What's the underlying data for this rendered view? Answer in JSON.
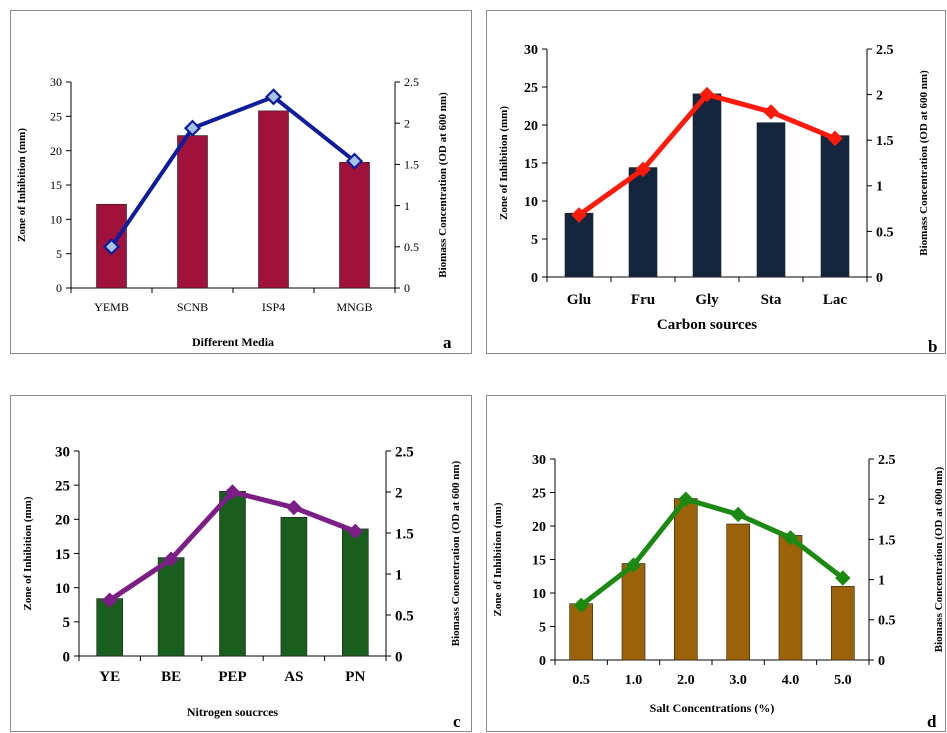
{
  "figure": {
    "panels": [
      {
        "id": "a",
        "letter": "a",
        "xlabel": "Different Media"
      },
      {
        "id": "b",
        "letter": "b",
        "xlabel": "Carbon sources"
      },
      {
        "id": "c",
        "letter": "c",
        "xlabel": "Nitrogen soucrces"
      },
      {
        "id": "d",
        "letter": "d",
        "xlabel": "Salt Concentrations (%)"
      }
    ]
  },
  "chart_data": [
    {
      "type": "bar",
      "panel": "a",
      "categories": [
        "YEMB",
        "SCNB",
        "ISP4",
        "MNGB"
      ],
      "xlabel": "Different Media",
      "ylabel": "Zone of Inhibition (mm)",
      "y2label": "Biomass Concentration (OD at 600 nm)",
      "ylim": [
        0,
        30
      ],
      "y2lim": [
        0,
        2.5
      ],
      "yticks": [
        "0",
        "5",
        "10",
        "15",
        "20",
        "25",
        "30"
      ],
      "y2ticks": [
        "0",
        "0.5",
        "1",
        "1.5",
        "2",
        "2.5"
      ],
      "bar_values": [
        12.2,
        22.2,
        25.8,
        18.3
      ],
      "line_values": [
        0.5,
        1.94,
        2.32,
        1.54
      ],
      "bar_color": "#a0123c",
      "line_color": "#0b1c9c",
      "marker": "diamond-hollow",
      "marker_fill": "#a7c4e8",
      "legend": "none"
    },
    {
      "type": "bar",
      "panel": "b",
      "categories": [
        "Glu",
        "Fru",
        "Gly",
        "Sta",
        "Lac"
      ],
      "xlabel": "Carbon sources",
      "ylabel": "Zone of Inhibition (mm)",
      "y2label": "Biomass Concentration (OD at 600 nm)",
      "ylim": [
        0,
        30
      ],
      "y2lim": [
        0,
        2.5
      ],
      "yticks": [
        "0",
        "5",
        "10",
        "15",
        "20",
        "25",
        "30"
      ],
      "y2ticks": [
        "0",
        "0.5",
        "1",
        "1.5",
        "2",
        "2.5"
      ],
      "bar_values": [
        8.4,
        14.4,
        24.1,
        20.3,
        18.6
      ],
      "line_values": [
        0.68,
        1.18,
        2.0,
        1.81,
        1.52
      ],
      "bar_color": "#14263e",
      "line_color": "#ff1a0a",
      "marker": "diamond",
      "marker_fill": "#ff1a0a",
      "legend": "none"
    },
    {
      "type": "bar",
      "panel": "c",
      "categories": [
        "YE",
        "BE",
        "PEP",
        "AS",
        "PN"
      ],
      "xlabel": "Nitrogen soucrces",
      "ylabel": "Zone of Inhibition (mm)",
      "y2label": "Biomass Concentration (OD at 600 nm)",
      "ylim": [
        0,
        30
      ],
      "y2lim": [
        0,
        2.5
      ],
      "yticks": [
        "0",
        "5",
        "10",
        "15",
        "20",
        "25",
        "30"
      ],
      "y2ticks": [
        "0",
        "0.5",
        "1",
        "1.5",
        "2",
        "2.5"
      ],
      "bar_values": [
        8.4,
        14.4,
        24.1,
        20.3,
        18.6
      ],
      "line_values": [
        0.68,
        1.18,
        2.0,
        1.81,
        1.52
      ],
      "bar_color": "#1a5e1e",
      "line_color": "#7b1f86",
      "marker": "diamond",
      "marker_fill": "#7b1f86",
      "legend": "none"
    },
    {
      "type": "bar",
      "panel": "d",
      "categories": [
        "0.5",
        "1.0",
        "2.0",
        "3.0",
        "4.0",
        "5.0"
      ],
      "xlabel": "Salt Concentrations (%)",
      "ylabel": "Zone of Inhibition (mm)",
      "y2label": "Biomass Concentration (OD at 600 nm)",
      "ylim": [
        0,
        30
      ],
      "y2lim": [
        0,
        2.5
      ],
      "yticks": [
        "0",
        "5",
        "10",
        "15",
        "20",
        "25",
        "30"
      ],
      "y2ticks": [
        "0",
        "0.5",
        "1",
        "1.5",
        "2",
        "2.5"
      ],
      "bar_values": [
        8.4,
        14.4,
        24.1,
        20.3,
        18.6,
        11.0
      ],
      "line_values": [
        0.68,
        1.18,
        2.0,
        1.81,
        1.52,
        1.02
      ],
      "bar_color": "#9c6208",
      "line_color": "#1c8a12",
      "marker": "diamond",
      "marker_fill": "#1c8a12",
      "legend": "none"
    }
  ]
}
